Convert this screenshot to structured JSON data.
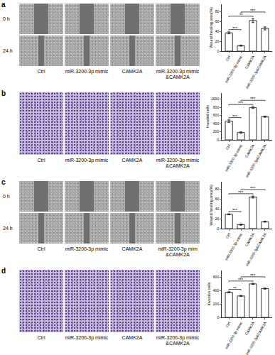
{
  "panels": [
    {
      "label": "a",
      "rows": [
        "0 h",
        "24 h"
      ],
      "columns": [
        "Ctrl",
        "miR-3200-3p mimic",
        "CAMK2A",
        "miR-3200-3p mimic &CAMK2A"
      ]
    },
    {
      "label": "b",
      "rows": [],
      "columns": [
        "Ctrl",
        "miR-3200-3p mimic",
        "CAMK2A",
        "miR-3200-3p mimic &CAMK2A"
      ]
    },
    {
      "label": "c",
      "rows": [
        "0 h",
        "24 h"
      ],
      "columns": [
        "Ctrl",
        "miR-3200-3p mimic",
        "CAMK2A",
        "miR-3200-3p mim &CAMK2A"
      ]
    },
    {
      "label": "d",
      "rows": [],
      "columns": [
        "Ctrl",
        "miR-3200-3p mimic",
        "CAMK2A",
        "miR-3200-3p mimic &CAMK2A"
      ]
    }
  ],
  "chart_data": [
    {
      "type": "bar",
      "ylabel": "Wound healing area(%)",
      "categories": [
        "Ctrl",
        "miR-3200-3p mimic",
        "CAMK2A",
        "miR-3200-3p&CAMK2A"
      ],
      "values": [
        37,
        11,
        62,
        46
      ],
      "errors": [
        2,
        1,
        4,
        3
      ],
      "color": "#ffffff",
      "ylim": [
        0,
        95
      ],
      "yticks": [
        0,
        20,
        40,
        60,
        80
      ],
      "annotations": [
        {
          "from": 0,
          "to": 1,
          "text": "***"
        },
        {
          "from": 0,
          "to": 2,
          "text": "**"
        },
        {
          "from": 1,
          "to": 3,
          "text": "***"
        }
      ]
    },
    {
      "type": "bar",
      "ylabel": "Invaded cells",
      "categories": [
        "Ctrl",
        "miR-3200-3p mimic",
        "CAMK2A",
        "miR-3200-3p&CAMK2A"
      ],
      "values": [
        460,
        180,
        790,
        570
      ],
      "errors": [
        30,
        15,
        20,
        15
      ],
      "color": "#ffffff",
      "ylim": [
        0,
        1150
      ],
      "yticks": [
        0,
        200,
        400,
        600,
        800,
        1000
      ],
      "annotations": [
        {
          "from": 0,
          "to": 1,
          "text": "***"
        },
        {
          "from": 0,
          "to": 2,
          "text": "***"
        },
        {
          "from": 1,
          "to": 3,
          "text": "***"
        }
      ]
    },
    {
      "type": "bar",
      "ylabel": "Wound healing area(%)",
      "categories": [
        "Ctrl",
        "miR-3200-3p mimic",
        "CAMK2A",
        "miR-3200-3p&CAMK2A"
      ],
      "values": [
        29,
        8,
        64,
        14
      ],
      "errors": [
        1,
        1,
        2,
        1
      ],
      "color": "#ffffff",
      "ylim": [
        0,
        95
      ],
      "yticks": [
        0,
        20,
        40,
        60,
        80
      ],
      "annotations": [
        {
          "from": 0,
          "to": 1,
          "text": "***"
        },
        {
          "from": 0,
          "to": 2,
          "text": "***"
        },
        {
          "from": 1,
          "to": 3,
          "text": "***"
        }
      ]
    },
    {
      "type": "bar",
      "ylabel": "Invasion cells",
      "categories": [
        "Ctrl",
        "miR-3200-3p mimic",
        "CAMK2A",
        "miR-3200-3p&CAMK2A"
      ],
      "values": [
        375,
        320,
        500,
        430
      ],
      "errors": [
        8,
        8,
        8,
        8
      ],
      "color": "#ffffff",
      "ylim": [
        0,
        700
      ],
      "yticks": [
        0,
        200,
        400,
        600
      ],
      "annotations": [
        {
          "from": 0,
          "to": 1,
          "text": "**"
        },
        {
          "from": 0,
          "to": 2,
          "text": "***"
        },
        {
          "from": 1,
          "to": 3,
          "text": "***"
        }
      ]
    }
  ]
}
